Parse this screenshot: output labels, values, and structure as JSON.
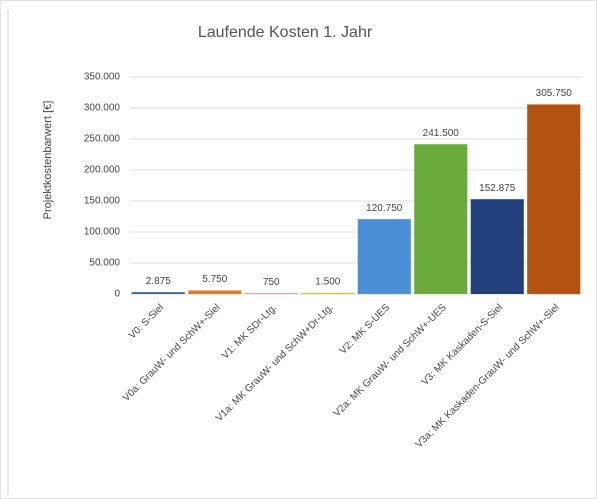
{
  "chart_data": {
    "type": "bar",
    "title": "Laufende Kosten 1. Jahr",
    "y_label": "Projektkostenbarwert [€]",
    "categories": [
      "V0: S-Siel",
      "V0a: GrauW- und SchW+-Siel",
      "V1: MK SDr-Ltg.",
      "V1a: MK GrauW- und SchW+Dr-Ltg.",
      "V2: MK S-UES",
      "V2a: MK GrauW- und SchW+-UES",
      "V3: MK Kaskaden-S-Siel",
      "V3a: MK Kaskaden-GrauW- und SchW+-Siel"
    ],
    "values": [
      2875,
      5750,
      750,
      1500,
      120750,
      241500,
      152875,
      305750
    ],
    "value_labels": [
      "2.875",
      "5.750",
      "750",
      "1.500",
      "120.750",
      "241.500",
      "152.875",
      "305.750"
    ],
    "colors": [
      "#2f5fa9",
      "#e27a2a",
      "#c8372d",
      "#f2b400",
      "#4a90d9",
      "#6aab3b",
      "#22407c",
      "#b4530f"
    ],
    "ylim": [
      0,
      350000
    ],
    "yticks": [
      0,
      {
        "value": 50000,
        "label": "50.000"
      },
      {
        "value": 100000,
        "label": "100.000"
      },
      {
        "value": 150000,
        "label": "150.000"
      },
      {
        "value": 200000,
        "label": "200.000"
      },
      {
        "value": 250000,
        "label": "250.000"
      },
      {
        "value": 300000,
        "label": "300.000"
      },
      {
        "value": 350000,
        "label": "350.000"
      }
    ],
    "grid": true
  }
}
